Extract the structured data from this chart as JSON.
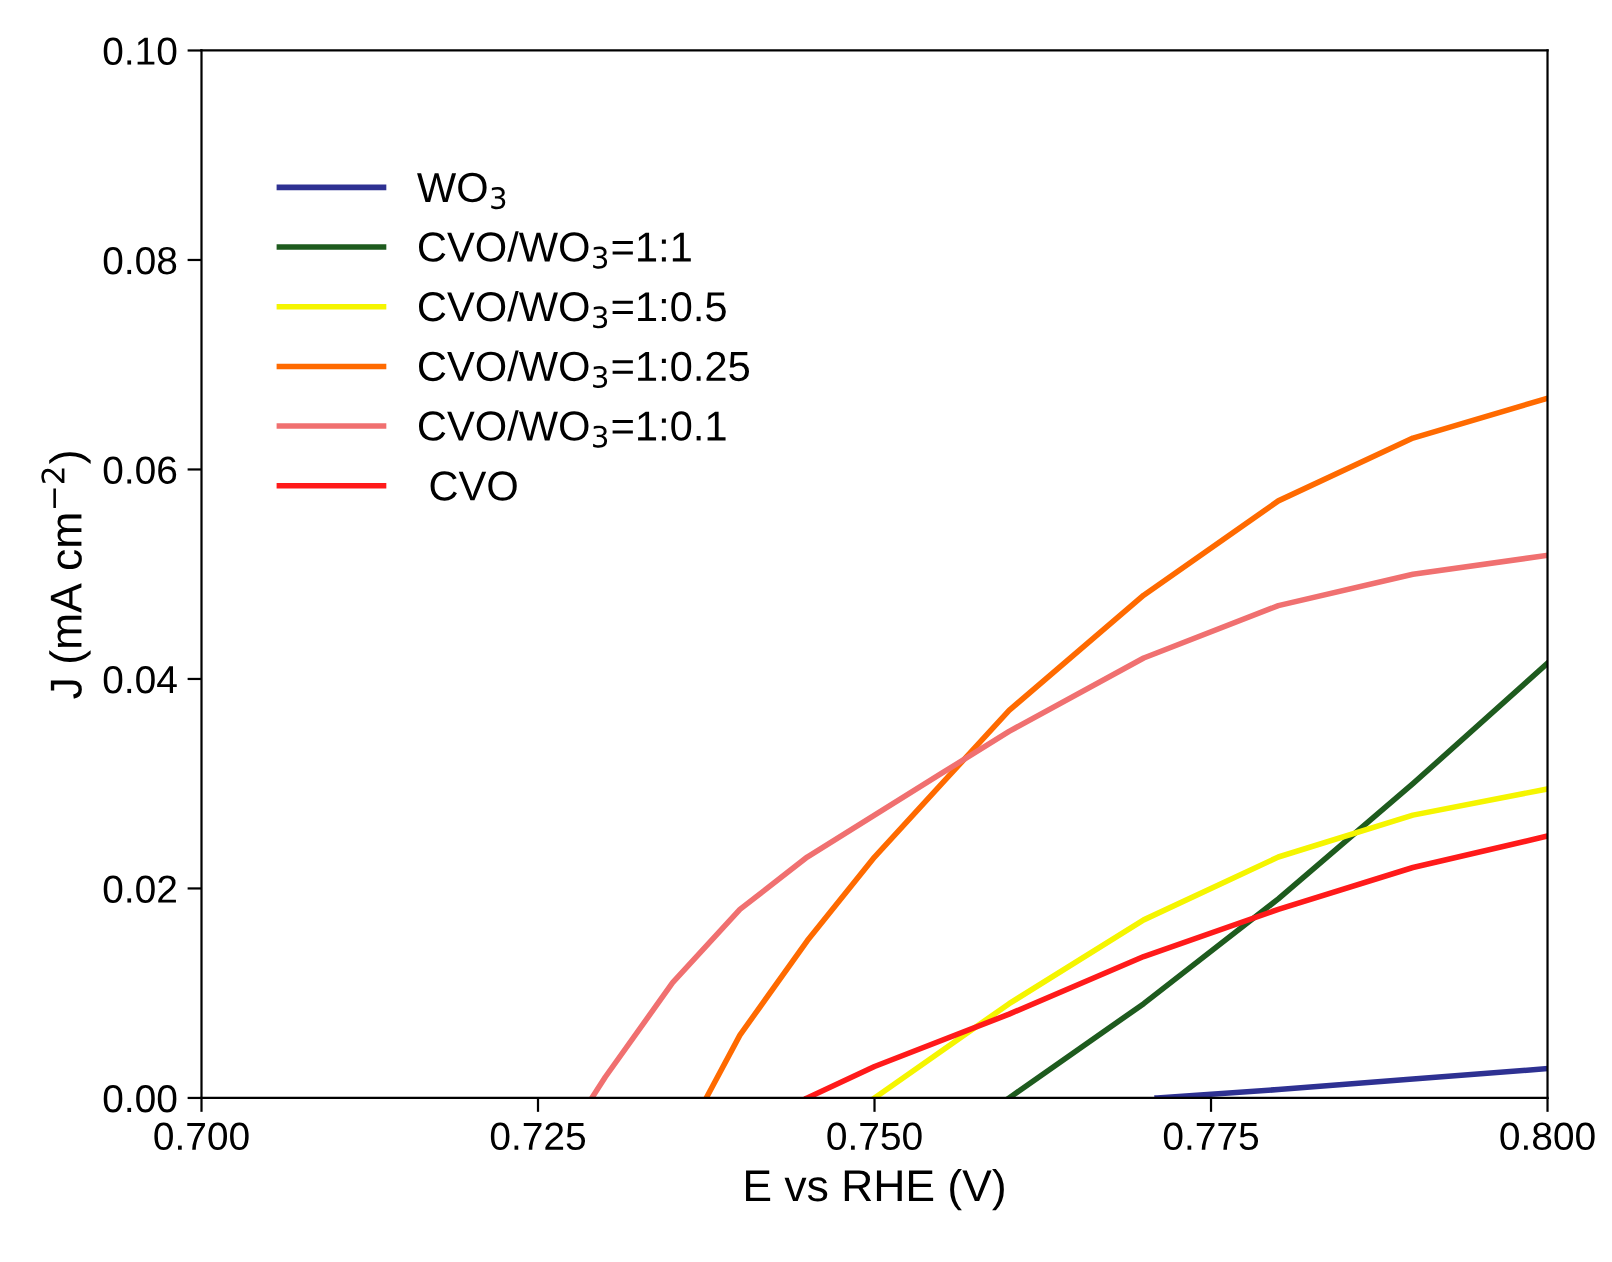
{
  "chart_data": {
    "type": "line",
    "xlabel": "E vs RHE (V)",
    "ylabel": "J (mA cm$^{−2}$)",
    "xlim": [
      0.7,
      0.8
    ],
    "xticks": [
      {
        "value": 0.7,
        "label": "0.700"
      },
      {
        "value": 0.725,
        "label": "0.725"
      },
      {
        "value": 0.75,
        "label": "0.750"
      },
      {
        "value": 0.775,
        "label": "0.775"
      },
      {
        "value": 0.8,
        "label": "0.800"
      }
    ],
    "ylim": [
      0,
      0.1
    ],
    "yticks": [
      {
        "value": 0,
        "label": "0.00"
      },
      {
        "value": 0.02,
        "label": "0.02"
      },
      {
        "value": 0.04,
        "label": "0.04"
      },
      {
        "value": 0.06,
        "label": "0.06"
      },
      {
        "value": 0.08,
        "label": "0.08"
      },
      {
        "value": 0.1,
        "label": "0.10"
      }
    ],
    "grid": false,
    "legend": "top left",
    "line_style": "solid",
    "marker": "none",
    "series": [
      {
        "name": "WO$_{3}$",
        "color": "#2e3192",
        "x": [
          0.771,
          0.78,
          0.79,
          0.8
        ],
        "values": [
          0,
          0.0008,
          0.0018,
          0.0028
        ]
      },
      {
        "name": "CVO/WO$_{3}$=1:1",
        "color": "#1e5b1e",
        "x": [
          0.76,
          0.77,
          0.78,
          0.79,
          0.8
        ],
        "values": [
          0,
          0.009,
          0.019,
          0.03,
          0.0415
        ]
      },
      {
        "name": "CVO/WO$_{3}$=1:0.5",
        "color": "#f5f500",
        "x": [
          0.75,
          0.76,
          0.77,
          0.78,
          0.79,
          0.8
        ],
        "values": [
          0,
          0.009,
          0.017,
          0.023,
          0.027,
          0.0295
        ]
      },
      {
        "name": "CVO/WO$_{3}$=1:0.25",
        "color": "#ff6a00",
        "x": [
          0.7375,
          0.74,
          0.745,
          0.75,
          0.755,
          0.76,
          0.77,
          0.78,
          0.79,
          0.8
        ],
        "values": [
          0,
          0.006,
          0.015,
          0.023,
          0.03,
          0.037,
          0.048,
          0.057,
          0.063,
          0.0668
        ]
      },
      {
        "name": "CVO/WO$_{3}$=1:0.1",
        "color": "#f07070",
        "x": [
          0.729,
          0.73,
          0.735,
          0.74,
          0.745,
          0.75,
          0.755,
          0.76,
          0.77,
          0.78,
          0.79,
          0.8
        ],
        "values": [
          0,
          0.002,
          0.011,
          0.018,
          0.023,
          0.027,
          0.031,
          0.035,
          0.042,
          0.047,
          0.05,
          0.0518
        ]
      },
      {
        "name": " CVO",
        "color": "#ff1a1a",
        "x": [
          0.745,
          0.75,
          0.76,
          0.77,
          0.78,
          0.79,
          0.8
        ],
        "values": [
          0,
          0.003,
          0.008,
          0.0135,
          0.018,
          0.022,
          0.025
        ]
      }
    ]
  }
}
